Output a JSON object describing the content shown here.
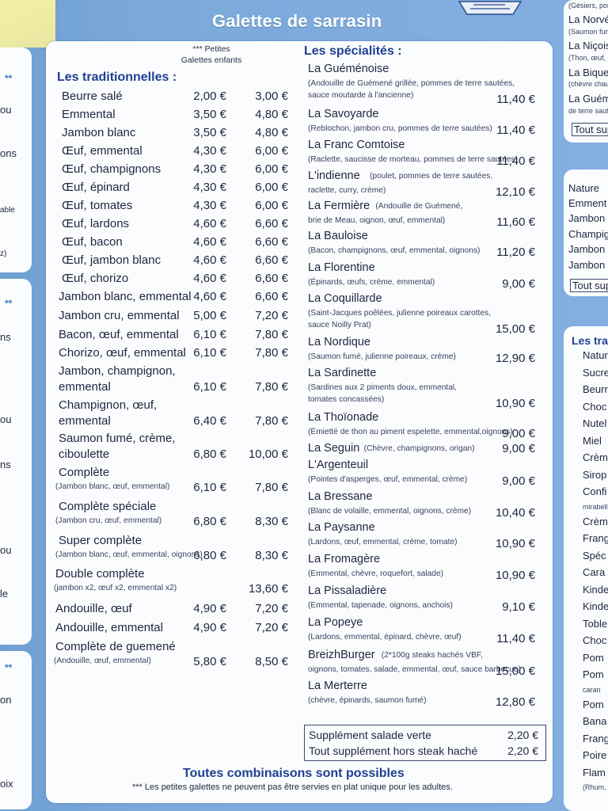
{
  "header": {
    "title": "Galettes de sarrasin",
    "petites_note": "*** Petites",
    "petites_note2": "Galettes enfants"
  },
  "traditionnelles": {
    "title": "Les traditionnelles :",
    "items": [
      {
        "name": "Beurre salé",
        "price": "2,00 €",
        "kids": "3,00 €"
      },
      {
        "name": "Emmental",
        "price": "3,50 €",
        "kids": "4,80 €"
      },
      {
        "name": "Jambon blanc",
        "price": "3,50 €",
        "kids": "4,80 €"
      },
      {
        "name": "Œuf, emmental",
        "price": "4,30 €",
        "kids": "6,00 €"
      },
      {
        "name": "Œuf, champignons",
        "price": "4,30 €",
        "kids": "6,00 €"
      },
      {
        "name": "Œuf, épinard",
        "price": "4,30 €",
        "kids": "6,00 €"
      },
      {
        "name": "Œuf, tomates",
        "price": "4,30 €",
        "kids": "6,00 €"
      },
      {
        "name": "Œuf, lardons",
        "price": "4,60 €",
        "kids": "6,60 €"
      },
      {
        "name": "Œuf, bacon",
        "price": "4,60 €",
        "kids": "6,60 €"
      },
      {
        "name": "Œuf, jambon blanc",
        "price": "4,60 €",
        "kids": "6,60 €"
      },
      {
        "name": "Œuf, chorizo",
        "price": "4,60 €",
        "kids": "6,60 €"
      },
      {
        "name": "Jambon blanc, emmental",
        "price": "4,60 €",
        "kids": "6,60 €"
      },
      {
        "name": "Jambon cru, emmental",
        "price": "5,00 €",
        "kids": "7,20 €"
      },
      {
        "name": "Bacon, œuf, emmental",
        "price": "6,10 €",
        "kids": "7,80 €"
      },
      {
        "name": "Chorizo, œuf, emmental",
        "price": "6,10 €",
        "kids": "7,80 €"
      },
      {
        "name": "Jambon, champignon,",
        "name2": "emmental",
        "price": "6,10 €",
        "kids": "7,80 €"
      },
      {
        "name": "Champignon, œuf,",
        "name2": "emmental",
        "price": "6,40 €",
        "kids": "7,80 €"
      },
      {
        "name": "Saumon fumé, crème,",
        "name2": "ciboulette",
        "price": "6,80 €",
        "kids": "10,00 €"
      },
      {
        "name": "Complète",
        "sub": "(Jambon blanc, œuf, emmental)",
        "price": "6,10 €",
        "kids": "7,80 €"
      },
      {
        "name": "Complète spéciale",
        "sub": "(Jambon cru, œuf, emmental)",
        "price": "6,80 €",
        "kids": "8,30 €"
      },
      {
        "name": "Super complète",
        "sub": "(Jambon blanc, œuf, emmental, oignons)",
        "price": "6,80 €",
        "kids": "8,30 €"
      },
      {
        "name": "Double complète",
        "sub": "(jambon x2, œuf x2, emmental x2)",
        "price": "",
        "kids": "13,60 €"
      },
      {
        "name": "Andouille, œuf",
        "price": "4,90 €",
        "kids": "7,20 €"
      },
      {
        "name": "Andouille, emmental",
        "price": "4,90 €",
        "kids": "7,20 €"
      },
      {
        "name": "Complète de guemené",
        "sub": "(Andouille, œuf, emmental)",
        "price": "5,80 €",
        "kids": "8,50 €"
      }
    ]
  },
  "specialites": {
    "title": "Les spécialités :",
    "items": [
      {
        "name": "La Guéménoise",
        "sub": "(Andouille de Guémené grillée, pommes de terre sautées,",
        "sub2": "sauce moutarde à l'ancienne)",
        "price": "11,40 €"
      },
      {
        "name": "La Savoyarde",
        "sub": "(Reblochon, jambon cru, pommes de terre sautées)",
        "price": "11,40 €"
      },
      {
        "name": "La Franc Comtoise",
        "sub": "(Raclette, saucisse de morteau, pommes de terre sautées)",
        "price": "11,40 €"
      },
      {
        "name": "L'indienne",
        "inline": "(poulet, pommes de terre sautées,",
        "sub": "raclette, curry, crème)",
        "price": "12,10 €"
      },
      {
        "name": "La Fermière",
        "inline": "(Andouille de Guémené,",
        "sub": "brie de Meau, oignon, œuf, emmental)",
        "price": "11,60 €"
      },
      {
        "name": "La Bauloise",
        "sub": "(Bacon, champignons, œuf, emmental, oignons)",
        "price": "11,20 €"
      },
      {
        "name": "La Florentine",
        "sub": "(Épinards, œufs, crème, emmental)",
        "price": "9,00 €"
      },
      {
        "name": "La Coquillarde",
        "sub": "(Saint-Jacques poêlées, julienne poireaux carottes,",
        "sub2": "sauce Noilly Prat)",
        "price": "15,00 €"
      },
      {
        "name": "La Nordique",
        "sub": "(Saumon fumé, julienne poireaux, crème)",
        "price": "12,90 €"
      },
      {
        "name": "La Sardinette",
        "sub": "(Sardines aux 2 piments doux, emmental,",
        "sub2": "tomates concassées)",
        "price": "10,90 €"
      },
      {
        "name": "La Thoïonade",
        "sub": "(Émietté de thon au piment espelette, emmental,oignons)",
        "price": "9,00 €"
      },
      {
        "name": "La Seguin",
        "inline": "(Chèvre, champignons, origan)",
        "price": "9,00 €"
      },
      {
        "name": "L'Argenteuil",
        "sub": "(Pointes d'asperges, œuf, emmental, crème)",
        "price": "9,00 €"
      },
      {
        "name": "La Bressane",
        "sub": "(Blanc de volaille, emmental, oignons, crème)",
        "price": "10,40 €"
      },
      {
        "name": "La Paysanne",
        "sub": "(Lardons, œuf, emmental, crème, tomate)",
        "price": "10,90 €"
      },
      {
        "name": "La Fromagère",
        "sub": "(Emmental, chèvre, roquefort, salade)",
        "price": "10,90 €"
      },
      {
        "name": "La Pissaladière",
        "sub": "(Emmental, tapenade, oignons, anchois)",
        "price": "9,10 €"
      },
      {
        "name": "La Popeye",
        "sub": "(Lardons, emmental, épinard, chèvre, œuf)",
        "price": "11,40 €"
      },
      {
        "name": "BreizhBurger",
        "inline": "(2*100g steaks hachés VBF,",
        "sub": "oignons, tomates, salade, emmental, œuf, sauce barbecue)",
        "price": "15,00 €"
      },
      {
        "name": "La Merterre",
        "sub": "(chèvre, épinards, saumon fumé)",
        "price": "12,80 €"
      }
    ]
  },
  "supplements": [
    {
      "label": "Supplément salade verte",
      "price": "2,20 €"
    },
    {
      "label": "Tout supplément hors steak haché",
      "price": "2,20 €"
    }
  ],
  "footer": {
    "combos": "Toutes combinaisons sont possibles",
    "note": "*** Les petites galettes ne peuvent pas être servies en plat unique pour les adultes."
  },
  "left_fragments": [
    "**",
    "ou",
    "ons",
    "able",
    "z)",
    "**",
    "ns",
    "ou",
    "ns",
    "ou",
    "le",
    "**",
    "on",
    "oix"
  ],
  "right_top": {
    "items": [
      {
        "name": "(Gésiers, pom",
        "small": true
      },
      {
        "name": "La Norvé"
      },
      {
        "name": "(Saumon fume",
        "small": true
      },
      {
        "name": "La Niçois"
      },
      {
        "name": "(Thon, œuf, d",
        "small": true
      },
      {
        "name": "La Bique"
      },
      {
        "name": "(chèvre chaud",
        "small": true
      },
      {
        "name": "La Guém"
      },
      {
        "name": "de terre saute",
        "small": true
      }
    ],
    "button": "Tout sup"
  },
  "right_mid": {
    "items": [
      "Nature",
      "Emment",
      "Jambon",
      "Champig",
      "Jambon",
      "Jambon l"
    ],
    "button": "Tout sup"
  },
  "right_bottom": {
    "title": "Les tra",
    "items": [
      "Natur",
      "Sucre",
      "Beurr",
      "Choc",
      "Nutel",
      "Miel",
      "Crèm",
      "Sirop",
      "Confi",
      "mirabell",
      "Crèm",
      "Frang",
      "Spéc",
      "Cara",
      "Kinde",
      "Kinde",
      "Toble",
      "Choc",
      "Pom",
      "Pom",
      "caran",
      "Pom",
      "Bana",
      "Frang",
      "Poire",
      "Flam",
      "(Rhum,"
    ]
  }
}
